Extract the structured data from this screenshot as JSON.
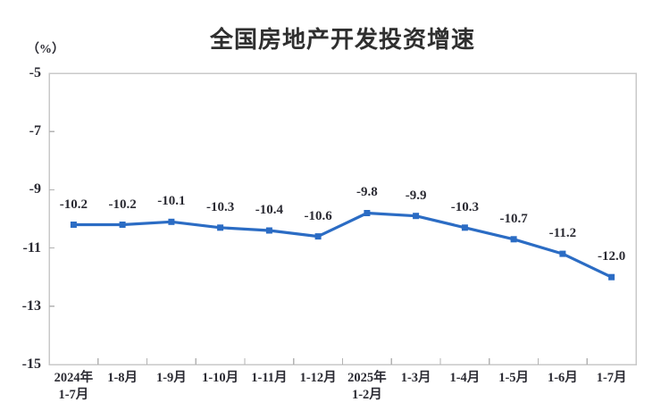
{
  "chart_data": {
    "type": "line",
    "title": "全国房地产开发投资增速",
    "unit_label": "（%）",
    "categories": [
      "2024年\n1-7月",
      "1-8月",
      "1-9月",
      "1-10月",
      "1-11月",
      "1-12月",
      "2025年\n1-2月",
      "1-3月",
      "1-4月",
      "1-5月",
      "1-6月",
      "1-7月"
    ],
    "values": [
      -10.2,
      -10.2,
      -10.1,
      -10.3,
      -10.4,
      -10.6,
      -9.8,
      -9.9,
      -10.3,
      -10.7,
      -11.2,
      -12.0
    ],
    "data_labels": [
      "-10.2",
      "-10.2",
      "-10.1",
      "-10.3",
      "-10.4",
      "-10.6",
      "-9.8",
      "-9.9",
      "-10.3",
      "-10.7",
      "-11.2",
      "-12.0"
    ],
    "xlabel": "",
    "ylabel": "",
    "ylim": [
      -15,
      -5
    ],
    "yticks": [
      -5,
      -7,
      -9,
      -11,
      -13,
      -15
    ],
    "grid": false,
    "legend_position": "none",
    "line_color": "#2b6cc4",
    "marker": "square",
    "plot_border_color": "#c9c9c9",
    "tick_color": "#b3b3b3",
    "text_color": "#2b2b33",
    "background_color": "#ffffff"
  }
}
